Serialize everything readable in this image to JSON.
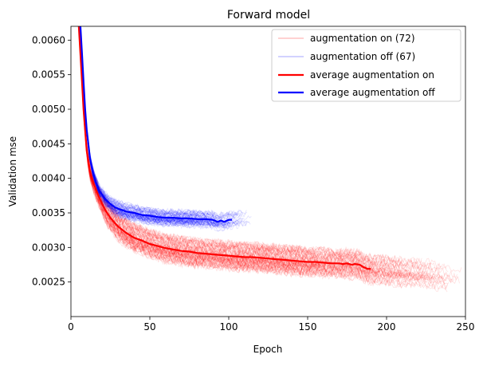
{
  "chart_data": {
    "type": "line",
    "title": "Forward model",
    "xlabel": "Epoch",
    "ylabel": "Validation mse",
    "xlim": [
      0,
      250
    ],
    "ylim": [
      0.002,
      0.0062
    ],
    "xticks": [
      0,
      50,
      100,
      150,
      200,
      250
    ],
    "xtick_labels": [
      "0",
      "50",
      "100",
      "150",
      "200",
      "250"
    ],
    "yticks": [
      0.0025,
      0.003,
      0.0035,
      0.004,
      0.0045,
      0.005,
      0.0055,
      0.006
    ],
    "ytick_labels": [
      "0.0025",
      "0.0030",
      "0.0035",
      "0.0040",
      "0.0045",
      "0.0050",
      "0.0055",
      "0.0060"
    ],
    "legend_position": "top-right",
    "colors": {
      "on": "#ff0000",
      "off": "#0000ff"
    },
    "individual_runs": {
      "on": {
        "label": "augmentation on (72)",
        "count": 72,
        "min_epochs": 150,
        "max_epochs": 250,
        "alpha": 0.12
      },
      "off": {
        "label": "augmentation off (67)",
        "count": 67,
        "min_epochs": 80,
        "max_epochs": 115,
        "alpha": 0.12
      }
    },
    "series": [
      {
        "name": "average augmentation on",
        "color": "#ff0000",
        "x": [
          5,
          6,
          7,
          8,
          9,
          10,
          12,
          14,
          16,
          18,
          20,
          22,
          25,
          28,
          30,
          35,
          40,
          45,
          50,
          55,
          60,
          65,
          70,
          75,
          80,
          85,
          90,
          95,
          100,
          105,
          110,
          115,
          120,
          125,
          130,
          135,
          140,
          145,
          150,
          155,
          160,
          165,
          170,
          172,
          175,
          178,
          180,
          183,
          185,
          188,
          190
        ],
        "y": [
          0.0062,
          0.0058,
          0.0054,
          0.005,
          0.0047,
          0.0044,
          0.0041,
          0.00395,
          0.00383,
          0.00372,
          0.00362,
          0.00353,
          0.00343,
          0.00335,
          0.0033,
          0.00321,
          0.00314,
          0.0031,
          0.00305,
          0.00302,
          0.00299,
          0.00297,
          0.00295,
          0.00294,
          0.00292,
          0.00291,
          0.0029,
          0.00289,
          0.00288,
          0.00287,
          0.00286,
          0.00286,
          0.00285,
          0.00284,
          0.00283,
          0.00282,
          0.00281,
          0.0028,
          0.00279,
          0.00279,
          0.00278,
          0.00277,
          0.00277,
          0.00276,
          0.00277,
          0.00275,
          0.00276,
          0.00275,
          0.00272,
          0.00269,
          0.00269
        ]
      },
      {
        "name": "average augmentation off",
        "color": "#0000ff",
        "x": [
          6,
          7,
          8,
          9,
          10,
          12,
          14,
          16,
          18,
          20,
          22,
          25,
          28,
          30,
          35,
          40,
          45,
          50,
          55,
          60,
          65,
          70,
          75,
          80,
          85,
          90,
          93,
          95,
          97,
          100,
          102
        ],
        "y": [
          0.0062,
          0.0058,
          0.0054,
          0.005,
          0.0047,
          0.0043,
          0.00408,
          0.00393,
          0.00382,
          0.00376,
          0.00369,
          0.00363,
          0.00358,
          0.00356,
          0.00352,
          0.0035,
          0.00347,
          0.00346,
          0.00344,
          0.00343,
          0.00343,
          0.00342,
          0.00342,
          0.00341,
          0.00341,
          0.0034,
          0.00337,
          0.00339,
          0.00337,
          0.0034,
          0.0034
        ]
      }
    ]
  }
}
